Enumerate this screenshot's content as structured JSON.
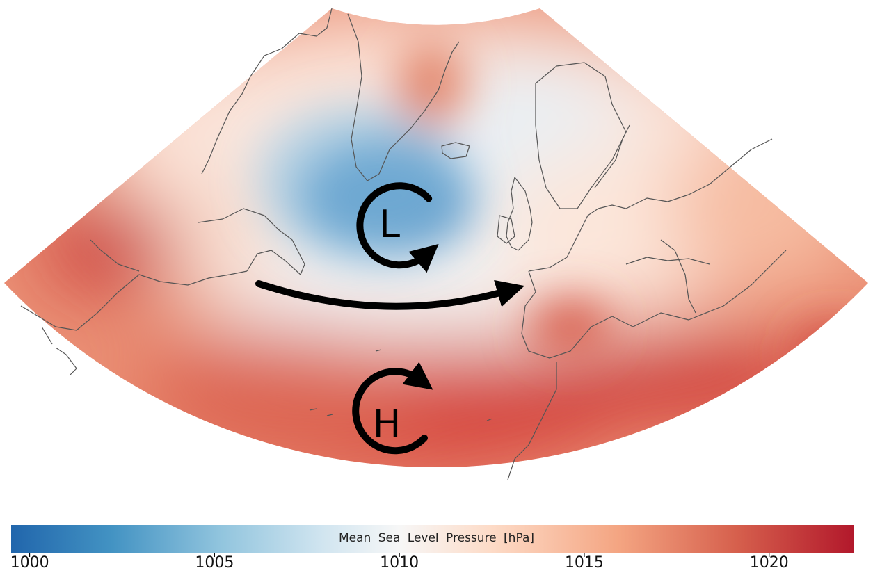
{
  "map": {
    "pressure_centers": [
      {
        "letter": "L",
        "rotation": "counterclockwise"
      },
      {
        "letter": "H",
        "rotation": "clockwise"
      }
    ],
    "flow_arrow": "westerly jet flow, west to east",
    "colors": {
      "low": "#2166ac",
      "mid": "#f7f7f7",
      "high": "#b2182b",
      "coast": "#555555",
      "symbols": "#000000"
    }
  },
  "colorbar": {
    "label": "Mean Sea Level Pressure [hPa]",
    "min": 999.5,
    "max": 1022.3,
    "ticks": [
      "1000",
      "1005",
      "1010",
      "1015",
      "1020"
    ],
    "colormap": "RdBu_r"
  }
}
